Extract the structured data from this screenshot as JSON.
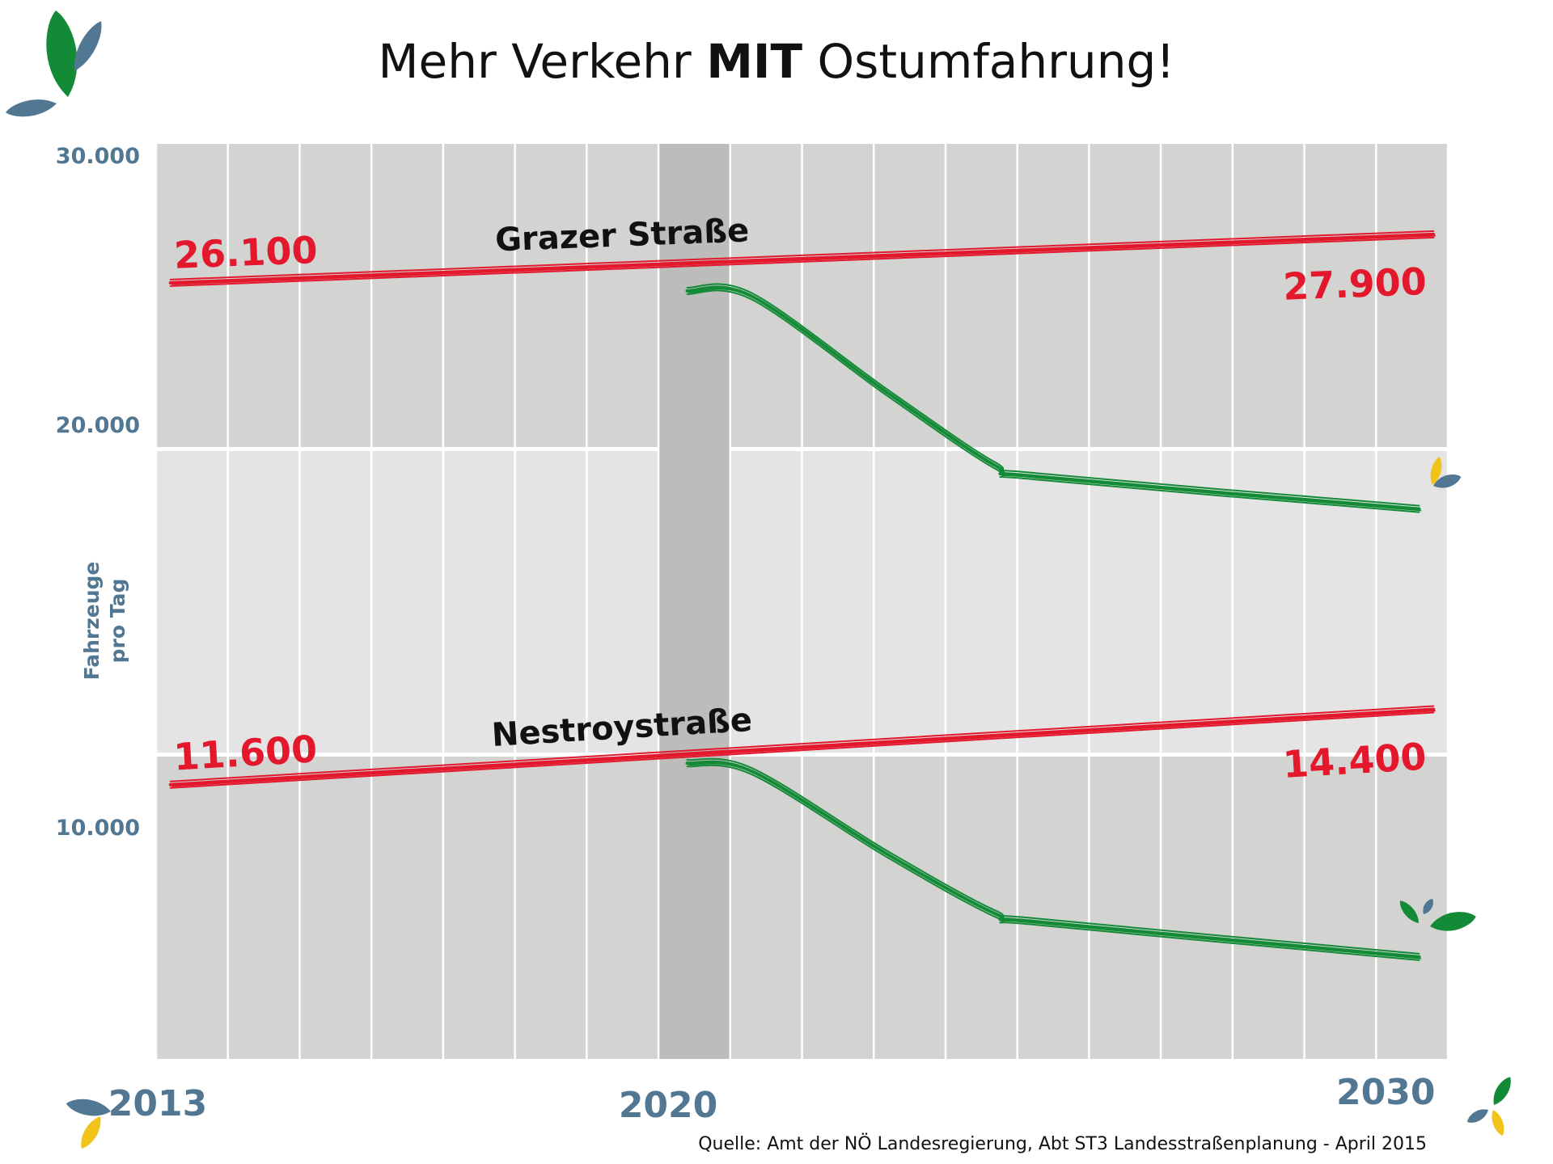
{
  "title": {
    "pre": "Mehr Verkehr ",
    "bold": "MIT",
    "post": " Ostumfahrung!"
  },
  "source": "Quelle: Amt der NÖ Landesregierung, Abt ST3 Landesstraßenplanung - April 2015",
  "colors": {
    "without_bypass": "#e3182d",
    "with_bypass": "#128a36",
    "axis_text": "#527792",
    "panel_dark": "#d3d3d2",
    "panel_light": "#e4e4e4",
    "highlight_2020": "#bcbcbb"
  },
  "chart_data": {
    "type": "line",
    "title": "Mehr Verkehr MIT Ostumfahrung!",
    "ylabel_lines": [
      "Fahrzeuge",
      "pro Tag"
    ],
    "x_ticks": [
      "2013",
      "2020",
      "2030"
    ],
    "y_ticks": [
      "30.000",
      "20.000",
      "10.000"
    ],
    "xlim": [
      2013,
      2031
    ],
    "highlight_year": 2020,
    "series": [
      {
        "name": "Grazer Straße",
        "kind": "without_bypass",
        "x": [
          2013.2,
          2030.8
        ],
        "values": [
          26100,
          27900
        ],
        "start_label": "26.100",
        "end_label": "27.900"
      },
      {
        "kind": "with_bypass",
        "x": [
          2020.4,
          2021.3,
          2023.2,
          2024.7,
          2025.3,
          2030.6
        ],
        "values": [
          25800,
          25600,
          22000,
          19300,
          18900,
          17700
        ]
      },
      {
        "name": "Nestroystraße",
        "kind": "without_bypass",
        "x": [
          2013.2,
          2030.8
        ],
        "values": [
          11600,
          14400
        ],
        "start_label": "11.600",
        "end_label": "14.400"
      },
      {
        "kind": "with_bypass",
        "x": [
          2020.4,
          2021.3,
          2023.2,
          2024.7,
          2025.3,
          2030.6
        ],
        "values": [
          12400,
          12100,
          9000,
          6800,
          6500,
          5200
        ]
      }
    ]
  },
  "icons": [
    "leaf-logo-icon",
    "leaf-deco-icon"
  ]
}
